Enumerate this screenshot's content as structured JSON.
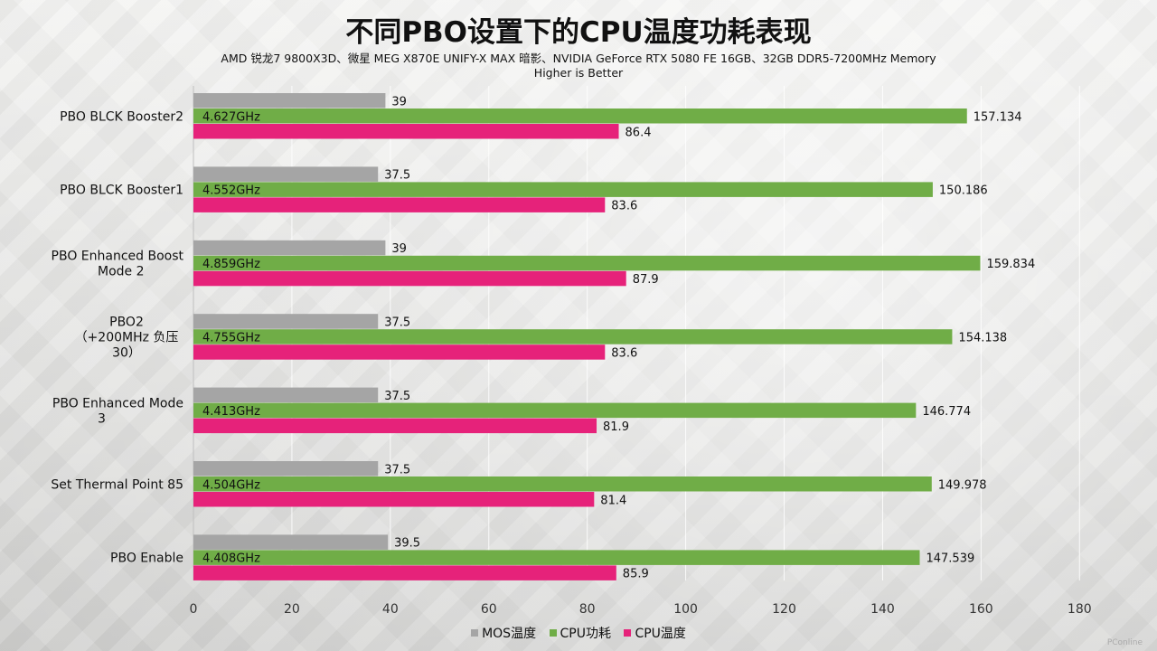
{
  "title": "不同PBO设置下的CPU温度功耗表现",
  "subtitle": "AMD 锐龙7 9800X3D、微星  MEG X870E UNIFY-X MAX 暗影、NVIDIA GeForce RTX 5080 FE 16GB、32GB  DDR5-7200MHz  Memory",
  "subtitle2": "Higher is Better",
  "watermark": "PConline",
  "colors": {
    "mos": "#a5a5a5",
    "power": "#70ad47",
    "temp": "#e6227a"
  },
  "chart_data": {
    "type": "bar",
    "orientation": "horizontal",
    "categories": [
      "PBO BLCK Booster2",
      "PBO BLCK Booster1",
      "PBO Enhanced Boost Mode 2",
      "PBO2 （+200MHz 负压 30）",
      "PBO Enhanced Mode 3",
      "Set Thermal Point 85",
      "PBO Enable"
    ],
    "category_label_lines": [
      [
        "PBO BLCK Booster2"
      ],
      [
        "PBO BLCK Booster1"
      ],
      [
        "PBO Enhanced Boost",
        "Mode 2"
      ],
      [
        "PBO2",
        "（+200MHz 负压",
        "30）"
      ],
      [
        "PBO Enhanced Mode",
        "3"
      ],
      [
        "Set Thermal Point 85"
      ],
      [
        "PBO Enable"
      ]
    ],
    "series": [
      {
        "name": "MOS温度",
        "values": [
          39,
          37.5,
          39,
          37.5,
          37.5,
          37.5,
          39.5
        ]
      },
      {
        "name": "CPU功耗",
        "values": [
          157.134,
          150.186,
          159.834,
          154.138,
          146.774,
          149.978,
          147.539
        ]
      },
      {
        "name": "CPU温度",
        "values": [
          86.4,
          83.6,
          87.9,
          83.6,
          81.9,
          81.4,
          85.9
        ]
      }
    ],
    "frequency_labels": [
      "4.627GHz",
      "4.552GHz",
      "4.859GHz",
      "4.755GHz",
      "4.413GHz",
      "4.504GHz",
      "4.408GHz"
    ],
    "xlim": [
      0,
      180
    ],
    "xticks": [
      0,
      20,
      40,
      60,
      80,
      100,
      120,
      140,
      160,
      180
    ],
    "grid": true,
    "legend_position": "bottom"
  }
}
